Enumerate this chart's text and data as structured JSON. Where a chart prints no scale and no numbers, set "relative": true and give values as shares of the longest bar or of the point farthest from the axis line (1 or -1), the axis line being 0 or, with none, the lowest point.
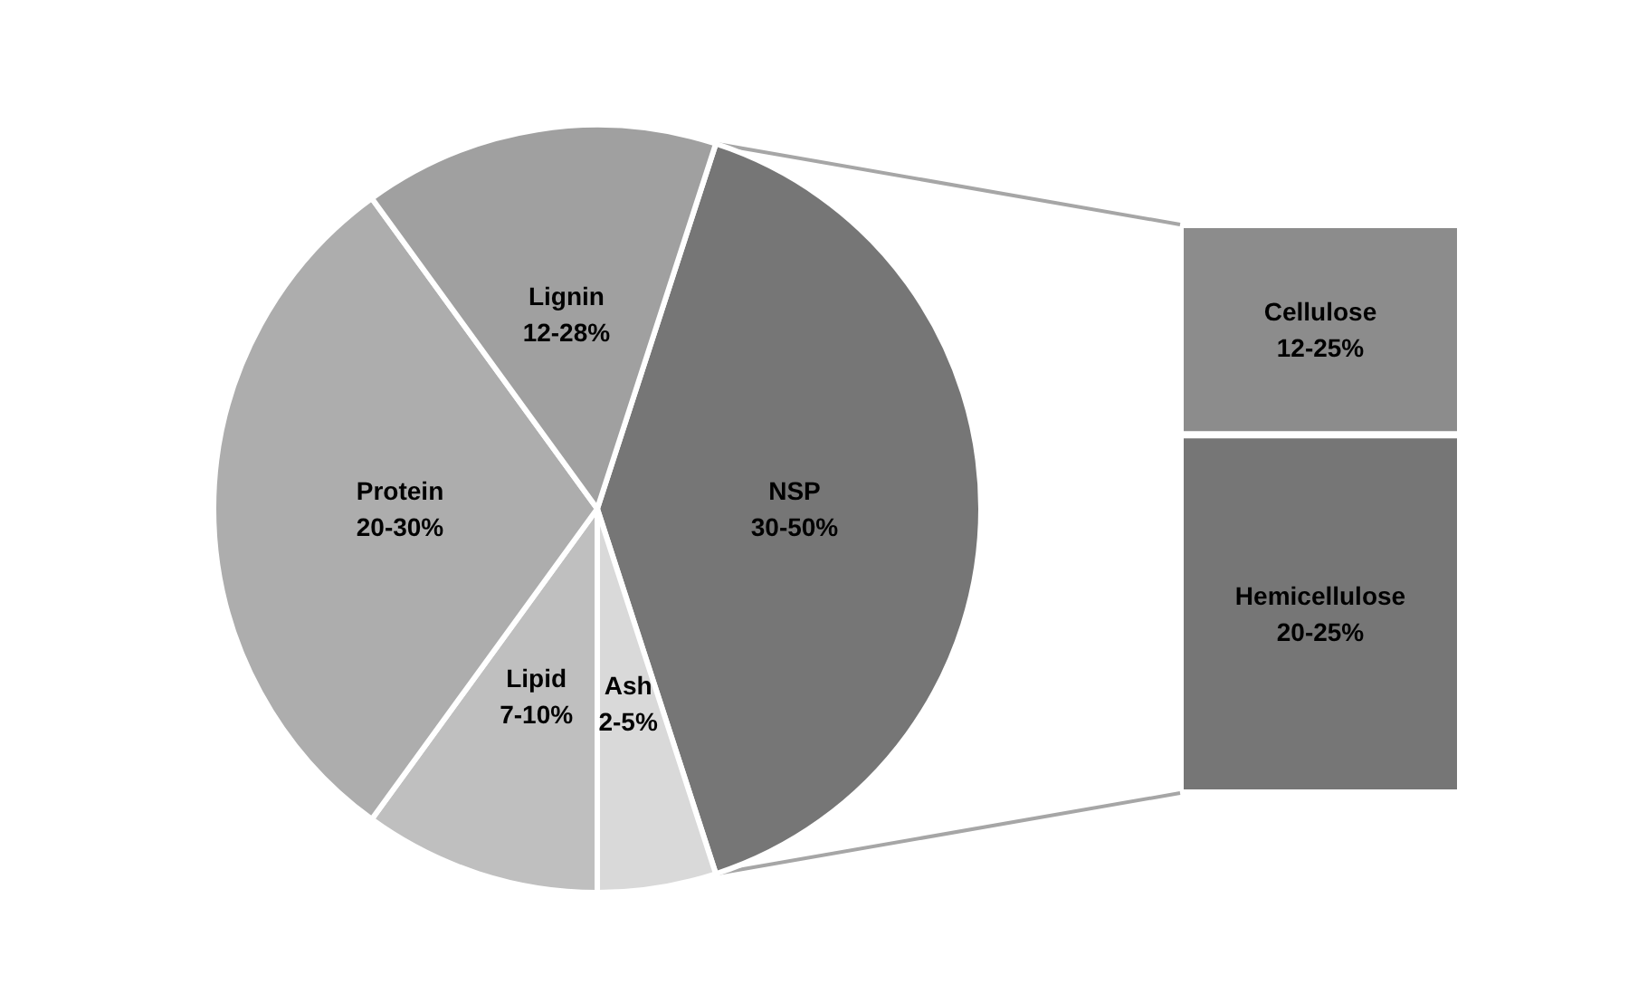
{
  "chart_data": [
    {
      "type": "pie",
      "categories": [
        "NSP\n30-50%",
        "Ash\n2-5%",
        "Lipid\n7-10%",
        "Protein\n20-30%",
        "Lignin\n12-28%"
      ],
      "values": [
        40,
        5,
        10,
        30,
        15
      ],
      "colors": [
        "#767676",
        "#d9d9d9",
        "#bfbfbf",
        "#adadad",
        "#a0a0a0"
      ]
    },
    {
      "type": "bar",
      "stacked": true,
      "relative": true,
      "categories": [
        null
      ],
      "series": [
        {
          "name": "Hemicellulose\n20-25%",
          "color": "#767676",
          "values": [
            0.63
          ]
        },
        {
          "name": "Cellulose\n12-25%",
          "color": "#8c8c8c",
          "values": [
            0.37
          ]
        }
      ]
    }
  ]
}
